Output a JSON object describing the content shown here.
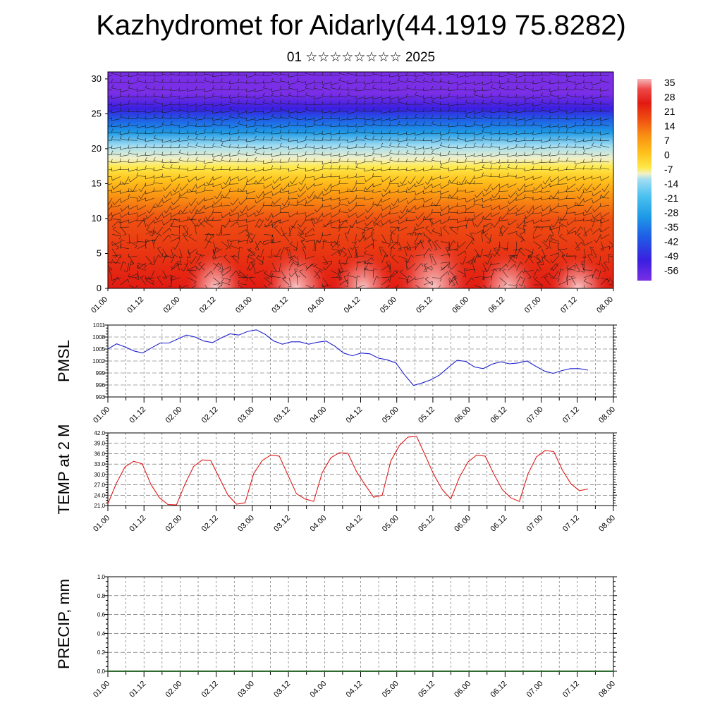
{
  "header": {
    "title": "Kazhydromet for Aidarly(44.1919 75.8282)",
    "subtitle": "01 ☆☆☆☆☆☆☆☆ 2025"
  },
  "time_labels": [
    "01.00",
    "01.12",
    "02.00",
    "02.12",
    "03.00",
    "03.12",
    "04.00",
    "04.12",
    "05.00",
    "05.12",
    "06.00",
    "06.12",
    "07.00",
    "07.12",
    "08.00"
  ],
  "chart_data": [
    {
      "type": "heatmap",
      "name": "cross-section",
      "x_ticks": [
        "01.00",
        "01.12",
        "02.00",
        "02.12",
        "03.00",
        "03.12",
        "04.00",
        "04.12",
        "05.00",
        "05.12",
        "06.00",
        "06.12",
        "07.00",
        "07.12",
        "08.00"
      ],
      "y_ticks": [
        0,
        5,
        10,
        15,
        20,
        25,
        30
      ],
      "ylim": [
        0,
        31
      ],
      "colorbar_labels": [
        "35",
        "28",
        "21",
        "14",
        "7",
        "0",
        "-7",
        "-14",
        "-21",
        "-28",
        "-35",
        "-42",
        "-49",
        "-56"
      ],
      "colorbar_min": -60,
      "colorbar_max": 38,
      "colors": {
        "c-60": "#7a2ee6",
        "c-52": "#3a1fe0",
        "c-44": "#1f5ee6",
        "c-36": "#1e9be6",
        "c-28": "#4cc2f0",
        "c-20": "#9fdcf3",
        "c-14": "#f0f0c8",
        "c-8": "#ffe94a",
        "c0": "#ffc21c",
        "c8": "#f98f12",
        "c16": "#ef4f12",
        "c24": "#e21a12",
        "c30": "#ee4848",
        "c38": "#f6b6b6"
      },
      "vectors": "barbs (wind)"
    },
    {
      "type": "line",
      "name": "PMSL",
      "ylabel": "PMSL",
      "ylim": [
        993,
        1011
      ],
      "y_ticks": [
        993,
        996,
        999,
        1002,
        1005,
        1008,
        1011
      ],
      "x_ticks": [
        "01.00",
        "01.12",
        "02.00",
        "02.12",
        "03.00",
        "03.12",
        "04.00",
        "04.12",
        "05.00",
        "05.12",
        "06.00",
        "06.12",
        "07.00",
        "07.12",
        "08.00"
      ],
      "color": "#1f1fd0",
      "values": [
        1005,
        1006.3,
        1005.5,
        1004.5,
        1004,
        1005.3,
        1006.5,
        1006.5,
        1007.5,
        1008.5,
        1008,
        1007,
        1006.6,
        1007.8,
        1008.8,
        1008.5,
        1009.4,
        1009.8,
        1008.7,
        1007,
        1006.2,
        1006.8,
        1006.8,
        1006.2,
        1006.7,
        1007,
        1005.7,
        1004,
        1003.3,
        1004,
        1003.8,
        1002.7,
        1002.3,
        1001.5,
        998.5,
        995.9,
        996.5,
        997.3,
        998.5,
        1000.4,
        1002.2,
        1001.9,
        1000.5,
        1000.1,
        1001.2,
        1001.8,
        1001.3,
        1001.5,
        1002,
        1000.7,
        999.5,
        998.9,
        999.6,
        1000.1,
        1000.1,
        999.7
      ]
    },
    {
      "type": "line",
      "name": "TEMP at 2 M",
      "ylabel": "TEMP at 2 M",
      "ylim": [
        21,
        42
      ],
      "y_ticks": [
        "21.0",
        "24.0",
        "27.0",
        "30.0",
        "33.0",
        "36.0",
        "39.0",
        "42.0"
      ],
      "x_ticks": [
        "01.00",
        "01.12",
        "02.00",
        "02.12",
        "03.00",
        "03.12",
        "04.00",
        "04.12",
        "05.00",
        "05.12",
        "06.00",
        "06.12",
        "07.00",
        "07.12",
        "08.00"
      ],
      "color": "#e01a1a",
      "values": [
        21.5,
        27.5,
        32.2,
        33.8,
        33.1,
        27.2,
        23.3,
        21.3,
        21.2,
        27.2,
        32.3,
        34.2,
        34.0,
        29.0,
        24.0,
        21.4,
        21.8,
        30.2,
        34.0,
        35.6,
        35.3,
        29.8,
        24.4,
        22.9,
        22.2,
        30.5,
        34.8,
        36.3,
        36.1,
        30.8,
        27.0,
        23.4,
        24.0,
        33.9,
        38.4,
        40.8,
        41.0,
        35.6,
        30.0,
        25.6,
        22.9,
        29.2,
        33.6,
        35.6,
        35.3,
        30.2,
        25.6,
        23.2,
        22.2,
        30.2,
        35.1,
        36.9,
        36.6,
        31.3,
        27.3,
        25.3,
        25.8
      ]
    },
    {
      "type": "bar",
      "name": "PRECIP, mm",
      "ylabel": "PRECIP, mm",
      "ylim": [
        0,
        1
      ],
      "y_ticks": [
        "0.0",
        "0.2",
        "0.4",
        "0.6",
        "0.8",
        "1.0"
      ],
      "x_ticks": [
        "01.00",
        "01.12",
        "02.00",
        "02.12",
        "03.00",
        "03.12",
        "04.00",
        "04.12",
        "05.00",
        "05.12",
        "06.00",
        "06.12",
        "07.00",
        "07.12",
        "08.00"
      ],
      "color": "#2e6b2e",
      "values": []
    }
  ]
}
